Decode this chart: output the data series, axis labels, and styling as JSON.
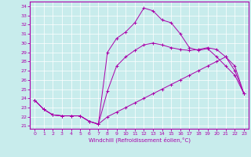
{
  "bg_color": "#c8ecec",
  "line_color": "#aa00aa",
  "xlabel": "Windchill (Refroidissement éolien,°C)",
  "xlim_min": -0.5,
  "xlim_max": 23.5,
  "ylim_min": 20.7,
  "ylim_max": 34.5,
  "xticks": [
    0,
    1,
    2,
    3,
    4,
    5,
    6,
    7,
    8,
    9,
    10,
    11,
    12,
    13,
    14,
    15,
    16,
    17,
    18,
    19,
    20,
    21,
    22,
    23
  ],
  "yticks": [
    21,
    22,
    23,
    24,
    25,
    26,
    27,
    28,
    29,
    30,
    31,
    32,
    33,
    34
  ],
  "curves": [
    {
      "x": [
        0,
        1,
        2,
        3,
        4,
        5,
        6,
        7,
        8,
        9,
        10,
        11,
        12,
        13,
        14,
        15,
        16,
        17,
        18,
        19,
        20,
        21,
        22,
        23
      ],
      "y": [
        23.8,
        22.8,
        22.2,
        22.1,
        22.1,
        22.1,
        21.5,
        21.2,
        29.0,
        30.5,
        31.2,
        32.2,
        33.8,
        33.5,
        32.5,
        32.2,
        31.0,
        29.5,
        29.2,
        29.4,
        28.5,
        27.5,
        26.5,
        24.5
      ]
    },
    {
      "x": [
        0,
        1,
        2,
        3,
        4,
        5,
        6,
        7,
        8,
        9,
        10,
        11,
        12,
        13,
        14,
        15,
        16,
        17,
        18,
        19,
        20,
        21,
        22,
        23
      ],
      "y": [
        23.8,
        22.8,
        22.2,
        22.1,
        22.1,
        22.1,
        21.5,
        21.2,
        24.8,
        27.5,
        28.5,
        29.2,
        29.8,
        30.0,
        29.8,
        29.5,
        29.3,
        29.2,
        29.3,
        29.5,
        29.3,
        28.5,
        27.5,
        24.5
      ]
    },
    {
      "x": [
        0,
        1,
        2,
        3,
        4,
        5,
        6,
        7,
        8,
        9,
        10,
        11,
        12,
        13,
        14,
        15,
        16,
        17,
        18,
        19,
        20,
        21,
        22,
        23
      ],
      "y": [
        23.8,
        22.8,
        22.2,
        22.1,
        22.1,
        22.1,
        21.5,
        21.2,
        22.0,
        22.5,
        23.0,
        23.5,
        24.0,
        24.5,
        25.0,
        25.5,
        26.0,
        26.5,
        27.0,
        27.5,
        28.0,
        28.5,
        27.0,
        24.5
      ]
    }
  ]
}
